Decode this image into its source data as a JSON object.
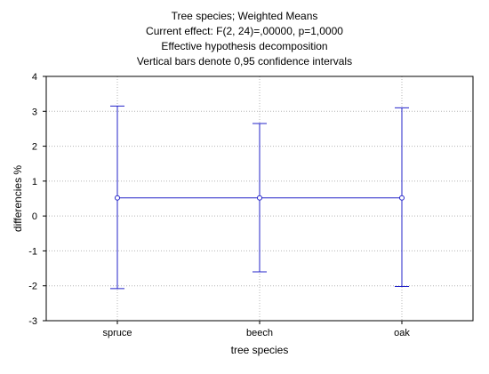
{
  "chart_data": {
    "type": "line",
    "title_lines": [
      "Tree species; Weighted Means",
      "Current effect: F(2, 24)=,00000, p=1,0000",
      "Effective hypothesis decomposition",
      "Vertical bars denote 0,95 confidence intervals"
    ],
    "xlabel": "tree species",
    "ylabel": "differencies %",
    "categories": [
      "spruce",
      "beech",
      "oak"
    ],
    "series": [
      {
        "means": [
          0.52,
          0.52,
          0.52
        ],
        "ci_lower": [
          -2.08,
          -1.6,
          -2.02
        ],
        "ci_upper": [
          3.15,
          2.65,
          3.1
        ]
      }
    ],
    "ylim": [
      -3,
      4
    ],
    "yticks": [
      -3,
      -2,
      -1,
      0,
      1,
      2,
      3,
      4
    ],
    "ytick_labels": [
      "-3",
      "-2",
      "-1",
      "0",
      "1",
      "2",
      "3",
      "4"
    ],
    "grid": true,
    "colors": {
      "series": "#2323c8",
      "grid": "#b4b4b4",
      "frame": "#000000"
    }
  }
}
